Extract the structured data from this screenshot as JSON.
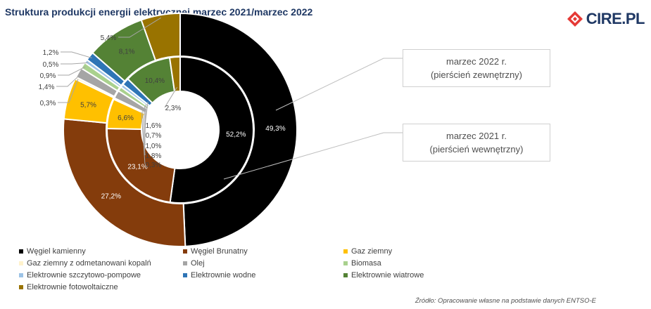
{
  "title": "Struktura produkcji energii elektrycznej marzec 2021/marzec 2022",
  "logo": {
    "text": "CIRE.PL"
  },
  "callouts": {
    "outer": {
      "line1": "marzec 2022 r.",
      "line2": "(pierścień zewnętrzny)"
    },
    "inner": {
      "line1": "marzec 2021 r.",
      "line2": "(pierścień wewnętrzny)"
    }
  },
  "source": "Źródło: Opracowanie własne na podstawie danych ENTSO-E",
  "chart_data": {
    "type": "doughnut",
    "categories": [
      "Węgiel kamienny",
      "Węgiel Brunatny",
      "Gaz ziemny",
      "Gaz ziemny z odmetanowani kopalń",
      "Olej",
      "Biomasa",
      "Elektrownie szczytowo-pompowe",
      "Elektrownie wodne",
      "Elektrownie wiatrowe",
      "Elektrownie fotowoltaiczne"
    ],
    "colors": [
      "#000000",
      "#843c0c",
      "#ffc000",
      "#fff2cc",
      "#a5a5a5",
      "#a9d18e",
      "#9dc3e6",
      "#2e75b6",
      "#548235",
      "#997300"
    ],
    "series": [
      {
        "name": "marzec 2022 r.",
        "values": [
          49.3,
          27.2,
          5.7,
          0.3,
          1.4,
          0.9,
          0.5,
          1.2,
          8.1,
          5.4
        ],
        "labels": [
          "49,3%",
          "27,2%",
          "5,7%",
          "0,3%",
          "1,4%",
          "0,9%",
          "0,5%",
          "1,2%",
          "8,1%",
          "5,4%"
        ]
      },
      {
        "name": "marzec 2021 r.",
        "values": [
          52.2,
          23.1,
          6.6,
          0.3,
          1.8,
          1.0,
          0.7,
          1.6,
          10.4,
          2.3
        ],
        "labels": [
          "52,2%",
          "23,1%",
          "6,6%",
          "0,3%",
          "1,8%",
          "1,0%",
          "0,7%",
          "1,6%",
          "10,4%",
          "2,3%"
        ]
      }
    ],
    "legend_position": "bottom"
  }
}
